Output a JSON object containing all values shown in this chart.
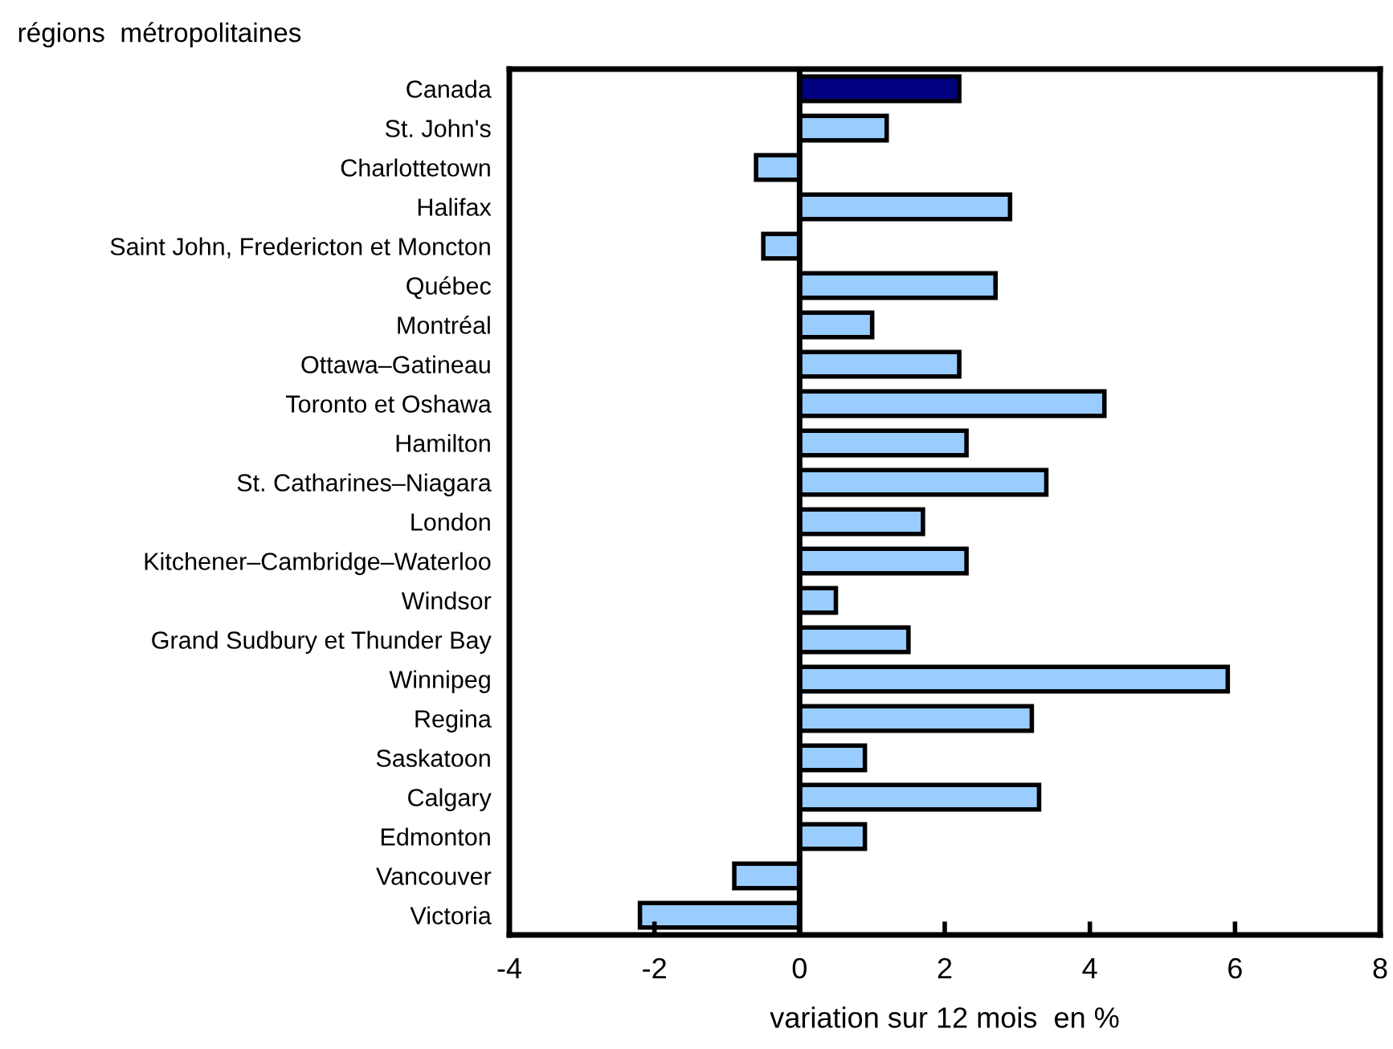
{
  "chart_data": {
    "type": "bar",
    "orientation": "horizontal",
    "ylabel": "régions  métropolitaines",
    "xlabel": "variation sur 12 mois  en %",
    "categories": [
      "Canada",
      "St. John's",
      "Charlottetown",
      "Halifax",
      "Saint John, Fredericton et Moncton",
      "Québec",
      "Montréal",
      "Ottawa–Gatineau",
      "Toronto et Oshawa",
      "Hamilton",
      "St. Catharines–Niagara",
      "London",
      "Kitchener–Cambridge–Waterloo",
      "Windsor",
      "Grand Sudbury et Thunder Bay",
      "Winnipeg",
      "Regina",
      "Saskatoon",
      "Calgary",
      "Edmonton",
      "Vancouver",
      "Victoria"
    ],
    "values": [
      2.2,
      1.2,
      -0.6,
      2.9,
      -0.5,
      2.7,
      1.0,
      2.2,
      4.2,
      2.3,
      3.4,
      1.7,
      2.3,
      0.5,
      1.5,
      5.9,
      3.2,
      0.9,
      3.3,
      0.9,
      -0.9,
      -2.2
    ],
    "colors": [
      "#000080",
      "#99ccff",
      "#99ccff",
      "#99ccff",
      "#99ccff",
      "#99ccff",
      "#99ccff",
      "#99ccff",
      "#99ccff",
      "#99ccff",
      "#99ccff",
      "#99ccff",
      "#99ccff",
      "#99ccff",
      "#99ccff",
      "#99ccff",
      "#99ccff",
      "#99ccff",
      "#99ccff",
      "#99ccff",
      "#99ccff",
      "#99ccff"
    ],
    "xlim": [
      -4,
      8
    ],
    "xticks": [
      -4,
      -2,
      0,
      2,
      4,
      6,
      8
    ]
  }
}
